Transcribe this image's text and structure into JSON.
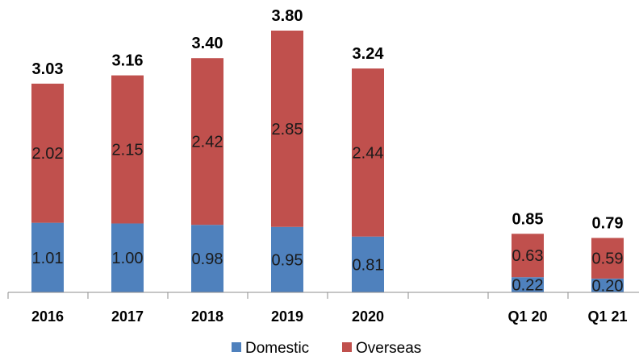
{
  "chart_data": {
    "type": "bar",
    "stacked": true,
    "categories": [
      "2016",
      "2017",
      "2018",
      "2019",
      "2020",
      "",
      "Q1 20",
      "Q1 21"
    ],
    "series": [
      {
        "name": "Domestic",
        "values": [
          1.01,
          1.0,
          0.98,
          0.95,
          0.81,
          null,
          0.22,
          0.2
        ],
        "color": "#4f81bd"
      },
      {
        "name": "Overseas",
        "values": [
          2.02,
          2.15,
          2.42,
          2.85,
          2.44,
          null,
          0.63,
          0.59
        ],
        "color": "#c0504d"
      }
    ],
    "totals": [
      3.03,
      3.16,
      3.4,
      3.8,
      3.24,
      null,
      0.85,
      0.79
    ],
    "ylim": [
      0,
      3.8
    ],
    "grid": false,
    "legend_position": "bottom-center"
  },
  "labels": {
    "domestic_values": [
      "1.01",
      "1.00",
      "0.98",
      "0.95",
      "0.81",
      "",
      "0.22",
      "0.20"
    ],
    "overseas_values": [
      "2.02",
      "2.15",
      "2.42",
      "2.85",
      "2.44",
      "",
      "0.63",
      "0.59"
    ],
    "total_values": [
      "3.03",
      "3.16",
      "3.40",
      "3.80",
      "3.24",
      "",
      "0.85",
      "0.79"
    ]
  },
  "legend": {
    "domestic": "Domestic",
    "overseas": "Overseas"
  }
}
